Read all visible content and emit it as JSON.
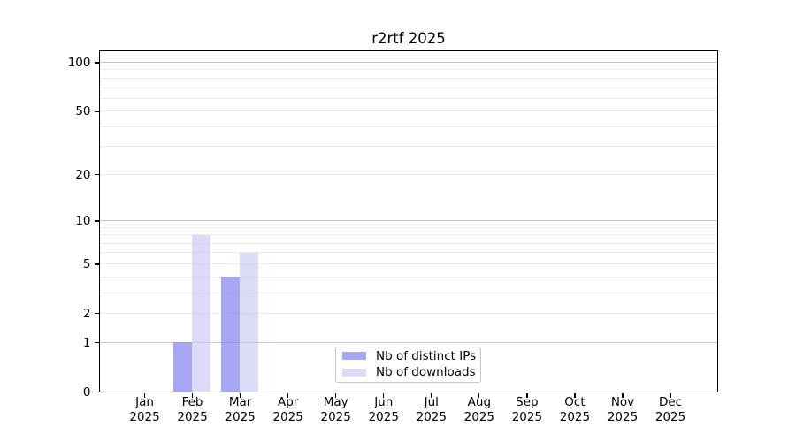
{
  "figure": {
    "background": "#ffffff"
  },
  "chart_data": {
    "type": "bar",
    "title": "r2rtf 2025",
    "x": {
      "categories": [
        "Jan",
        "Feb",
        "Mar",
        "Apr",
        "May",
        "Jun",
        "Jul",
        "Aug",
        "Sep",
        "Oct",
        "Nov",
        "Dec"
      ],
      "year_label": "2025"
    },
    "y": {
      "scale": "log1p",
      "lim": [
        0,
        117
      ],
      "tick_values": [
        0,
        1,
        2,
        5,
        10,
        20,
        50,
        100
      ],
      "tick_labels": [
        "0",
        "1",
        "2",
        "5",
        "10",
        "20",
        "50",
        "100"
      ],
      "minor_gridlines": [
        3,
        4,
        6,
        7,
        8,
        9,
        30,
        40,
        60,
        70,
        80,
        90
      ],
      "decade_gridlines": [
        1,
        10,
        100
      ]
    },
    "series": [
      {
        "name": "Nb of distinct IPs",
        "color": "#a7a7f3",
        "fill": "rgba(133,133,238,0.72)",
        "values": [
          0,
          1,
          4,
          0,
          0,
          0,
          0,
          0,
          0,
          0,
          0,
          0
        ]
      },
      {
        "name": "Nb of downloads",
        "color": "#dcdcf9",
        "fill": "rgba(192,192,244,0.55)",
        "values": [
          0,
          8,
          6,
          0,
          0,
          0,
          0,
          0,
          0,
          0,
          0,
          0
        ]
      }
    ],
    "legend": {
      "position": "lower center inside",
      "items": [
        "Nb of distinct IPs",
        "Nb of downloads"
      ]
    },
    "grid": "horizontal",
    "colors": {
      "spine": "#000000",
      "grid_decade": "#c9c9c9",
      "grid_minor": "#ececec",
      "text": "#000000"
    }
  }
}
